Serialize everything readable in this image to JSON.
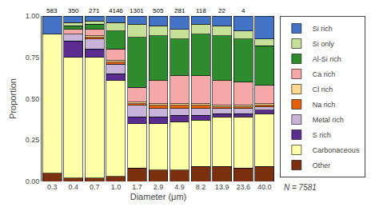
{
  "chart_data": {
    "type": "bar",
    "stacked": true,
    "categories": [
      "0.3",
      "0.4",
      "0.7",
      "1.0",
      "1.7",
      "2.9",
      "4.9",
      "8.2",
      "13.9",
      "23.6",
      "40.0"
    ],
    "series": [
      {
        "name": "Other",
        "color": "#7b3010",
        "values": [
          0.05,
          0.02,
          0.02,
          0.03,
          0.08,
          0.07,
          0.07,
          0.09,
          0.09,
          0.08,
          0.09
        ]
      },
      {
        "name": "Carbonaceous",
        "color": "#ffffaa",
        "values": [
          0.84,
          0.73,
          0.73,
          0.58,
          0.27,
          0.28,
          0.29,
          0.28,
          0.3,
          0.31,
          0.32
        ]
      },
      {
        "name": "S rich",
        "color": "#5c2d91",
        "values": [
          0.0,
          0.1,
          0.05,
          0.04,
          0.04,
          0.04,
          0.04,
          0.03,
          0.02,
          0.02,
          0.02
        ]
      },
      {
        "name": "Metal rich",
        "color": "#c8b4d8",
        "values": [
          0.0,
          0.04,
          0.06,
          0.06,
          0.07,
          0.05,
          0.04,
          0.04,
          0.03,
          0.03,
          0.02
        ]
      },
      {
        "name": "Na rich",
        "color": "#e06010",
        "values": [
          0.0,
          0.0,
          0.01,
          0.01,
          0.01,
          0.02,
          0.02,
          0.02,
          0.01,
          0.01,
          0.01
        ]
      },
      {
        "name": "Cl rich",
        "color": "#ffd890",
        "values": [
          0.0,
          0.0,
          0.01,
          0.01,
          0.01,
          0.01,
          0.01,
          0.01,
          0.01,
          0.01,
          0.01
        ]
      },
      {
        "name": "Ca rich",
        "color": "#f4a9a8",
        "values": [
          0.0,
          0.03,
          0.04,
          0.07,
          0.09,
          0.14,
          0.17,
          0.17,
          0.15,
          0.14,
          0.11
        ]
      },
      {
        "name": "Al-Si rich",
        "color": "#2e8b2e",
        "values": [
          0.0,
          0.02,
          0.03,
          0.11,
          0.3,
          0.27,
          0.22,
          0.25,
          0.27,
          0.26,
          0.24
        ]
      },
      {
        "name": "Si only",
        "color": "#c6e09a",
        "values": [
          0.0,
          0.02,
          0.02,
          0.05,
          0.08,
          0.06,
          0.06,
          0.06,
          0.06,
          0.05,
          0.04
        ]
      },
      {
        "name": "Si rich",
        "color": "#4472c4",
        "values": [
          0.11,
          0.04,
          0.03,
          0.04,
          0.05,
          0.06,
          0.08,
          0.05,
          0.06,
          0.09,
          0.14
        ]
      }
    ],
    "xlabel": "Diameter (μm)",
    "ylabel": "Proportion",
    "ylim": [
      0,
      1
    ],
    "yticks": [
      {
        "value": 0,
        "label": "0.00"
      },
      {
        "value": 0.25,
        "label": "0.25"
      },
      {
        "value": 0.5,
        "label": "0.50"
      },
      {
        "value": 0.75,
        "label": "0.75"
      },
      {
        "value": 1,
        "label": "1.00"
      }
    ],
    "grid": false,
    "legend": "right",
    "annotations": [
      {
        "x": "0.3",
        "text": "583"
      },
      {
        "x": "0.4",
        "text": "350"
      },
      {
        "x": "0.7",
        "text": "271"
      },
      {
        "x": "1.0",
        "text": "4146"
      },
      {
        "x": "1.7",
        "text": "1301"
      },
      {
        "x": "2.9",
        "text": "505"
      },
      {
        "x": "4.9",
        "text": "281"
      },
      {
        "x": "8.2",
        "text": "118"
      },
      {
        "x": "13.9",
        "text": "22"
      },
      {
        "x": "23.6",
        "text": "4"
      },
      {
        "text": "N = 7581"
      }
    ]
  }
}
